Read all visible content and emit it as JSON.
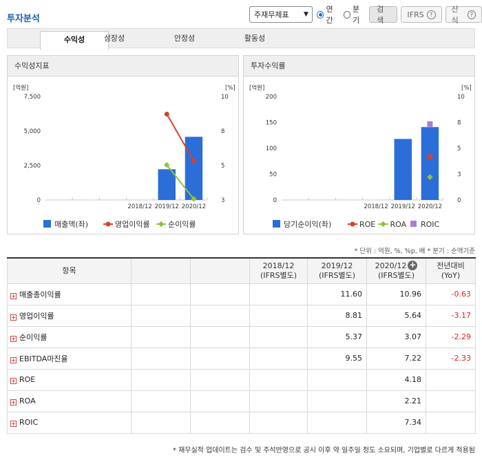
{
  "title": "투자분석",
  "controls": {
    "select_value": "주재무제표",
    "radio_annual": "연간",
    "radio_quarter": "분기",
    "search_btn": "검색",
    "ifrs_btn": "IFRS",
    "formula_btn": "산식"
  },
  "tabs": [
    "수익성",
    "성장성",
    "안정성",
    "활동성"
  ],
  "panels": {
    "left_title": "수익성지표",
    "right_title": "투자수익률"
  },
  "chart_data": [
    {
      "type": "bar",
      "title": "수익성지표",
      "categories": [
        "",
        "",
        "",
        "2018/12",
        "2019/12",
        "2020/12"
      ],
      "left_unit": "[억원]",
      "right_unit": "[%]",
      "y_left_ticks": [
        "7,500",
        "5,000",
        "2,500",
        "0"
      ],
      "y_right_ticks": [
        "10",
        "8",
        "5",
        "3"
      ],
      "ylim_left": [
        0,
        7500
      ],
      "ylim_right": [
        3,
        10
      ],
      "series": [
        {
          "name": "매출액(좌)",
          "kind": "bar",
          "axis": "left",
          "color": "#2c6ed8",
          "values": [
            null,
            null,
            null,
            null,
            2230,
            4580
          ]
        },
        {
          "name": "영업이익률",
          "kind": "line",
          "axis": "right",
          "color": "#d5432c",
          "values": [
            null,
            null,
            null,
            null,
            8.81,
            5.64
          ]
        },
        {
          "name": "순이익률",
          "kind": "line",
          "axis": "right",
          "color": "#8fc43a",
          "values": [
            null,
            null,
            null,
            null,
            5.37,
            3.07
          ]
        }
      ]
    },
    {
      "type": "bar",
      "title": "투자수익률",
      "categories": [
        "",
        "",
        "",
        "2018/12",
        "2019/12",
        "2020/12"
      ],
      "left_unit": "[억원]",
      "right_unit": "[%]",
      "y_left_ticks": [
        "200",
        "150",
        "100",
        "50",
        "0"
      ],
      "y_right_ticks": [
        "10",
        "8",
        "5",
        "3",
        "0"
      ],
      "ylim_left": [
        0,
        200
      ],
      "ylim_right": [
        0,
        10
      ],
      "series": [
        {
          "name": "당기순이익(좌)",
          "kind": "bar",
          "axis": "left",
          "color": "#2c6ed8",
          "values": [
            null,
            null,
            null,
            null,
            118,
            141
          ]
        },
        {
          "name": "ROE",
          "kind": "point",
          "axis": "right",
          "color": "#d5432c",
          "values": [
            null,
            null,
            null,
            null,
            null,
            4.18
          ]
        },
        {
          "name": "ROA",
          "kind": "point",
          "axis": "right",
          "color": "#8fc43a",
          "values": [
            null,
            null,
            null,
            null,
            null,
            2.21
          ]
        },
        {
          "name": "ROIC",
          "kind": "point",
          "axis": "right",
          "color": "#a67fd8",
          "values": [
            null,
            null,
            null,
            null,
            null,
            7.34
          ]
        }
      ]
    }
  ],
  "unit_note": "* 단위 : 억원, %, %p, 배   * 분기 : 순액기준",
  "table": {
    "header_item": "항목",
    "col_years": [
      {
        "year": "2018/12",
        "basis": "(IFRS별도)"
      },
      {
        "year": "2019/12",
        "basis": "(IFRS별도)"
      },
      {
        "year": "2020/12",
        "basis": "(IFRS별도)"
      }
    ],
    "col_yoy": {
      "label": "전년대비",
      "sub": "(YoY)"
    },
    "rows": [
      {
        "label": "매출총이익률",
        "v2018": "",
        "v2019": "11.60",
        "v2020": "10.96",
        "yoy": "-0.63"
      },
      {
        "label": "영업이익률",
        "v2018": "",
        "v2019": "8.81",
        "v2020": "5.64",
        "yoy": "-3.17"
      },
      {
        "label": "순이익률",
        "v2018": "",
        "v2019": "5.37",
        "v2020": "3.07",
        "yoy": "-2.29"
      },
      {
        "label": "EBITDA마진율",
        "v2018": "",
        "v2019": "9.55",
        "v2020": "7.22",
        "yoy": "-2.33"
      },
      {
        "label": "ROE",
        "v2018": "",
        "v2019": "",
        "v2020": "4.18",
        "yoy": ""
      },
      {
        "label": "ROA",
        "v2018": "",
        "v2019": "",
        "v2020": "2.21",
        "yoy": ""
      },
      {
        "label": "ROIC",
        "v2018": "",
        "v2019": "",
        "v2020": "7.34",
        "yoy": ""
      }
    ]
  },
  "footnote": "* 재무실적 업데이트는 검수 및 주석반영으로 공시 이후 약 일주일 정도 소요되며, 기업별로 다르게 적용됨"
}
